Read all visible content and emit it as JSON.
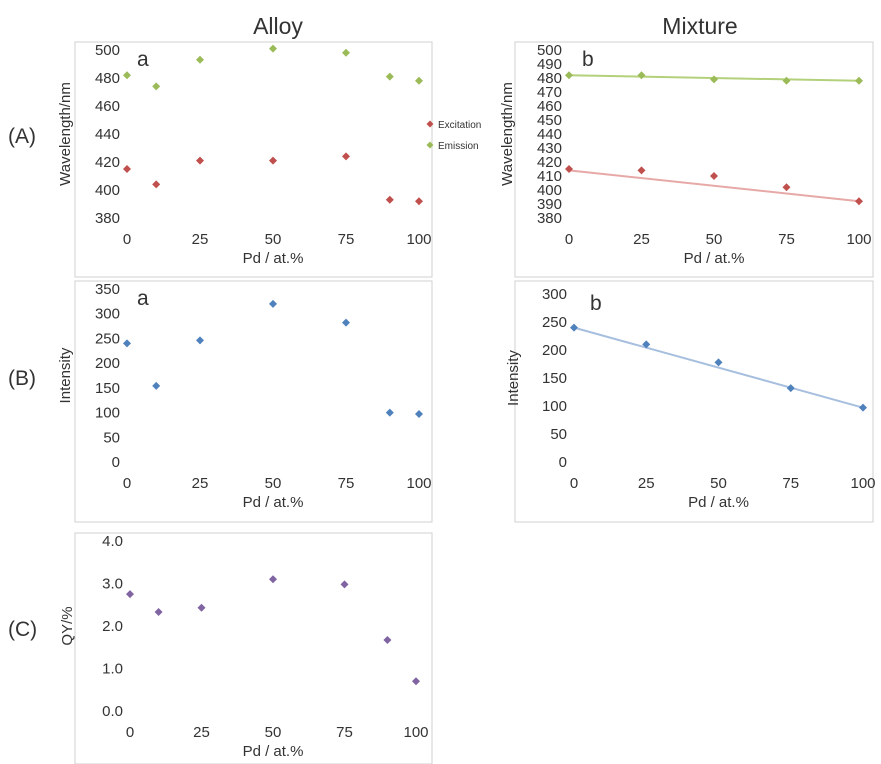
{
  "column_titles": [
    "Alloy",
    "Mixture"
  ],
  "row_labels": [
    "(A)",
    "(B)",
    "(C)"
  ],
  "colors": {
    "excitation": "#c0504d",
    "emission": "#9bbb59",
    "intensity": "#4f81bd",
    "qy": "#8064a2",
    "excitation_fit": "#e6a9a7",
    "emission_fit": "#b3d17a",
    "intensity_fit": "#a7bfdf"
  },
  "chart_data": [
    {
      "id": "A-alloy",
      "type": "scatter",
      "panel_letter": "a",
      "xlabel": "Pd / at.%",
      "ylabel": "Wavelength/nm",
      "xlim": [
        0,
        100
      ],
      "ylim": [
        380,
        500
      ],
      "xticks": [
        0,
        25,
        50,
        75,
        100
      ],
      "yticks": [
        380,
        400,
        420,
        440,
        460,
        480,
        500
      ],
      "legend": {
        "placement": "right",
        "entries": [
          "Excitation",
          "Emission"
        ]
      },
      "series": [
        {
          "name": "Excitation",
          "color_key": "excitation",
          "x": [
            0,
            10,
            25,
            50,
            75,
            90,
            100
          ],
          "y": [
            415,
            404,
            421,
            421,
            424,
            393,
            392
          ]
        },
        {
          "name": "Emission",
          "color_key": "emission",
          "x": [
            0,
            10,
            25,
            50,
            75,
            90,
            100
          ],
          "y": [
            482,
            474,
            493,
            501,
            498,
            481,
            478
          ]
        }
      ]
    },
    {
      "id": "A-mixture",
      "type": "scatter",
      "panel_letter": "b",
      "xlabel": "Pd / at.%",
      "ylabel": "Wavelength/nm",
      "xlim": [
        0,
        100
      ],
      "ylim": [
        380,
        500
      ],
      "xticks": [
        0,
        25,
        50,
        75,
        100
      ],
      "yticks": [
        380,
        390,
        400,
        410,
        420,
        430,
        440,
        450,
        460,
        470,
        480,
        490,
        500
      ],
      "series": [
        {
          "color_key": "excitation",
          "x": [
            0,
            25,
            50,
            75,
            100
          ],
          "y": [
            415,
            414,
            410,
            402,
            392
          ],
          "trend": {
            "y_start": 414,
            "y_end": 392,
            "color_key": "excitation_fit"
          }
        },
        {
          "color_key": "emission",
          "x": [
            0,
            25,
            50,
            75,
            100
          ],
          "y": [
            482,
            482,
            479,
            478,
            478
          ],
          "trend": {
            "y_start": 482,
            "y_end": 478,
            "color_key": "emission_fit"
          }
        }
      ]
    },
    {
      "id": "B-alloy",
      "type": "scatter",
      "panel_letter": "a",
      "xlabel": "Pd / at.%",
      "ylabel": "Intensity",
      "xlim": [
        0,
        100
      ],
      "ylim": [
        0,
        350
      ],
      "xticks": [
        0,
        25,
        50,
        75,
        100
      ],
      "yticks": [
        0,
        50,
        100,
        150,
        200,
        250,
        300,
        350
      ],
      "series": [
        {
          "color_key": "intensity",
          "x": [
            0,
            10,
            25,
            50,
            75,
            90,
            100
          ],
          "y": [
            240,
            154,
            246,
            320,
            282,
            100,
            97
          ]
        }
      ]
    },
    {
      "id": "B-mixture",
      "type": "scatter",
      "panel_letter": "b",
      "xlabel": "Pd / at.%",
      "ylabel": "Intensity",
      "xlim": [
        0,
        100
      ],
      "ylim": [
        0,
        300
      ],
      "xticks": [
        0,
        25,
        50,
        75,
        100
      ],
      "yticks": [
        0,
        50,
        100,
        150,
        200,
        250,
        300
      ],
      "series": [
        {
          "color_key": "intensity",
          "x": [
            0,
            25,
            50,
            75,
            100
          ],
          "y": [
            240,
            210,
            178,
            132,
            97
          ],
          "trend": {
            "y_start": 240,
            "y_end": 97,
            "color_key": "intensity_fit"
          }
        }
      ]
    },
    {
      "id": "C-alloy",
      "type": "scatter",
      "panel_letter": "",
      "xlabel": "Pd / at.%",
      "ylabel": "QY/%",
      "xlim": [
        0,
        100
      ],
      "ylim": [
        0,
        4
      ],
      "xticks": [
        0,
        25,
        50,
        75,
        100
      ],
      "yticks": [
        0,
        1,
        2,
        3,
        4
      ],
      "ytick_labels": [
        "0.0",
        "1.0",
        "2.0",
        "3.0",
        "4.0"
      ],
      "series": [
        {
          "color_key": "qy",
          "x": [
            0,
            10,
            25,
            50,
            75,
            90,
            100
          ],
          "y": [
            2.75,
            2.33,
            2.43,
            3.1,
            2.98,
            1.67,
            0.7
          ]
        }
      ]
    }
  ]
}
